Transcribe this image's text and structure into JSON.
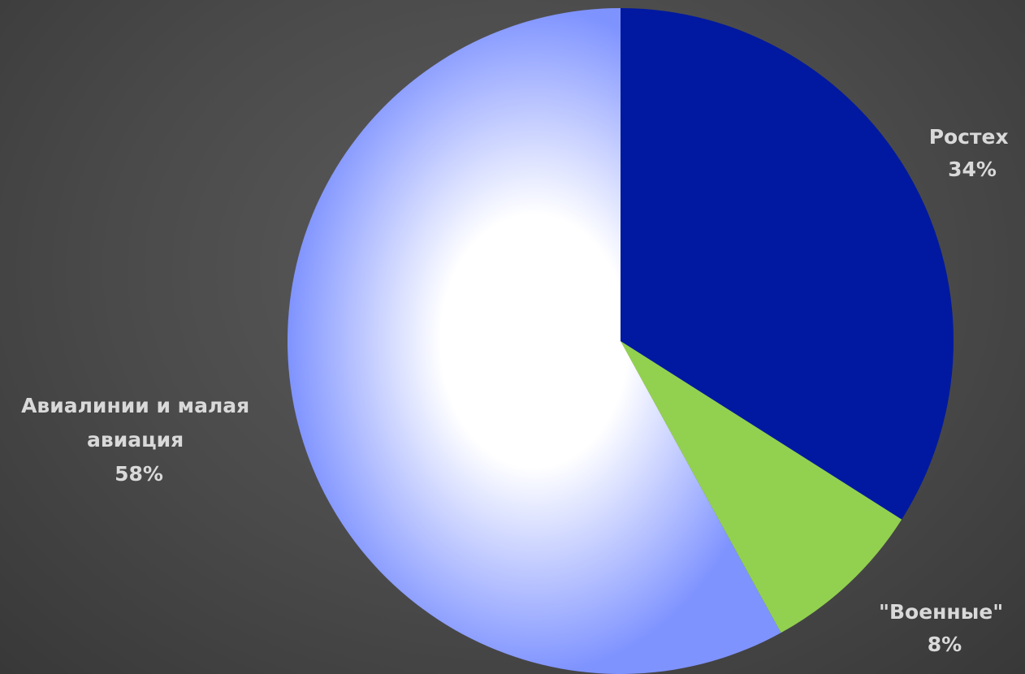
{
  "chart_data": {
    "type": "pie",
    "title": "",
    "slices": [
      {
        "label": "Ростех",
        "value": 34,
        "percent_label": "34%",
        "color": "#0019a0"
      },
      {
        "label": "\"Военные\"",
        "value": 8,
        "percent_label": "8%",
        "color": "#92d050"
      },
      {
        "label": "Авиалинии и малая авиация",
        "value": 58,
        "percent_label": "58%",
        "color": "#7f93ff",
        "gradient_center_color": "#ffffff"
      }
    ],
    "legend": "none",
    "data_labels": "outside"
  }
}
